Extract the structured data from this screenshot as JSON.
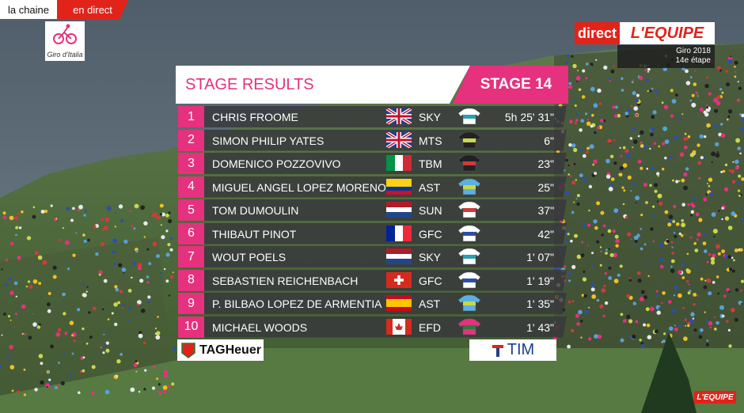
{
  "channel": {
    "label": "la chaine",
    "live": "en direct"
  },
  "logo": {
    "text": "Giro d'Italia"
  },
  "broadcaster": {
    "direct": "direct",
    "name": "L'EQUIPE",
    "event": "Giro 2018",
    "stage": "14e étape"
  },
  "table": {
    "title": "STAGE RESULTS",
    "stage": "STAGE 14",
    "rows": [
      [
        "1",
        "CHRIS FROOME",
        "SKY",
        "5h 25' 31\""
      ],
      [
        "2",
        "SIMON PHILIP YATES",
        "MTS",
        "6\""
      ],
      [
        "3",
        "DOMENICO POZZOVIVO",
        "TBM",
        "23\""
      ],
      [
        "4",
        "MIGUEL ANGEL LOPEZ MORENO",
        "AST",
        "25\""
      ],
      [
        "5",
        "TOM DUMOULIN",
        "SUN",
        "37\""
      ],
      [
        "6",
        "THIBAUT PINOT",
        "GFC",
        "42\""
      ],
      [
        "7",
        "WOUT POELS",
        "SKY",
        "1' 07\""
      ],
      [
        "8",
        "SEBASTIEN REICHENBACH",
        "GFC",
        "1' 19\""
      ],
      [
        "9",
        "P. BILBAO LOPEZ DE ARMENTIA",
        "AST",
        "1' 35\""
      ],
      [
        "10",
        "MICHAEL WOODS",
        "EFD",
        "1' 43\""
      ]
    ]
  },
  "sponsors": [
    "TAGHeuer",
    "TIM"
  ],
  "watermark": "L'EQUIPE"
}
